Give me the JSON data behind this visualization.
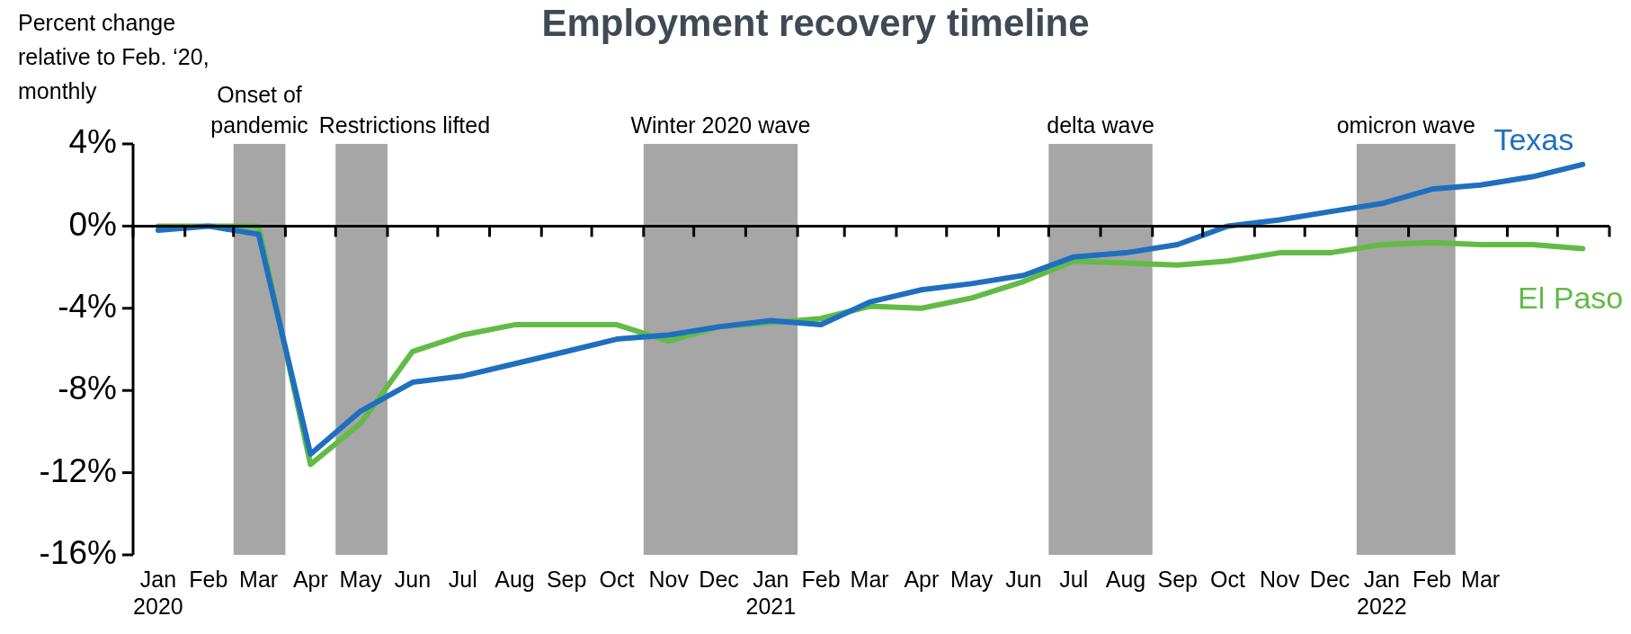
{
  "chart_data": {
    "type": "line",
    "title": "Employment recovery timeline",
    "ylabel": "Percent change\nrelative to Feb. ‘20,\nmonthly",
    "x": [
      "2020-01-16",
      "2020-02-15",
      "2020-03-16",
      "2020-04-16",
      "2020-05-16",
      "2020-06-16",
      "2020-07-16",
      "2020-08-16",
      "2020-09-16",
      "2020-10-16",
      "2020-11-16",
      "2020-12-16",
      "2021-01-16",
      "2021-02-15",
      "2021-03-16",
      "2021-04-16",
      "2021-05-16",
      "2021-06-16",
      "2021-07-16",
      "2021-08-16",
      "2021-09-16",
      "2021-10-16",
      "2021-11-16",
      "2021-12-16",
      "2022-01-16",
      "2022-02-15",
      "2022-03-16",
      "2022-04-16",
      "2022-05-16"
    ],
    "series": [
      {
        "name": "Texas",
        "color": "#1f6fbf",
        "values": [
          -0.2,
          0,
          -0.4,
          -11.1,
          -9.0,
          -7.6,
          -7.3,
          -6.7,
          -6.1,
          -5.5,
          -5.3,
          -4.9,
          -4.6,
          -4.8,
          -3.7,
          -3.1,
          -2.8,
          -2.4,
          -1.5,
          -1.3,
          -0.9,
          0,
          0.3,
          0.7,
          1.1,
          1.8,
          2.0,
          2.4,
          3.0
        ]
      },
      {
        "name": "El Paso",
        "color": "#62bb46",
        "values": [
          0,
          0,
          0,
          -11.6,
          -9.6,
          -6.1,
          -5.3,
          -4.8,
          -4.8,
          -4.8,
          -5.6,
          -4.9,
          -4.7,
          -4.5,
          -3.9,
          -4.0,
          -3.5,
          -2.7,
          -1.7,
          -1.8,
          -1.9,
          -1.7,
          -1.3,
          -1.3,
          -0.9,
          -0.8,
          -0.9,
          -0.9,
          -1.1
        ]
      }
    ],
    "xlim": [
      "2020-01-01",
      "2022-06-01"
    ],
    "xticks": [
      {
        "value": "2020-01-01",
        "label": null
      },
      {
        "value": "2020-02-01",
        "label": null
      },
      {
        "value": "2020-03-01",
        "label": null
      },
      {
        "value": "2020-04-01",
        "label": null
      },
      {
        "value": "2020-05-01",
        "label": null
      },
      {
        "value": "2020-06-01",
        "label": null
      },
      {
        "value": "2020-07-01",
        "label": null
      },
      {
        "value": "2020-08-01",
        "label": null
      },
      {
        "value": "2020-09-01",
        "label": null
      },
      {
        "value": "2020-10-01",
        "label": null
      },
      {
        "value": "2020-11-01",
        "label": null
      },
      {
        "value": "2020-12-01",
        "label": null
      },
      {
        "value": "2021-01-01",
        "label": null
      },
      {
        "value": "2021-02-01",
        "label": null
      },
      {
        "value": "2021-03-01",
        "label": null
      },
      {
        "value": "2021-04-01",
        "label": null
      },
      {
        "value": "2021-05-01",
        "label": null
      },
      {
        "value": "2021-06-01",
        "label": null
      },
      {
        "value": "2021-07-01",
        "label": null
      },
      {
        "value": "2021-08-01",
        "label": null
      },
      {
        "value": "2021-09-01",
        "label": null
      },
      {
        "value": "2021-10-01",
        "label": null
      },
      {
        "value": "2021-11-01",
        "label": null
      },
      {
        "value": "2021-12-01",
        "label": null
      },
      {
        "value": "2022-01-01",
        "label": null
      },
      {
        "value": "2022-02-01",
        "label": null
      },
      {
        "value": "2022-03-01",
        "label": null
      },
      {
        "value": "2022-04-01",
        "label": null
      },
      {
        "value": "2022-05-01",
        "label": null
      },
      {
        "value": "2022-06-01",
        "label": null
      },
      {
        "value": "2020-01-16",
        "label": "Jan\n2020"
      },
      {
        "value": "2020-02-15",
        "label": "Feb"
      },
      {
        "value": "2020-03-16",
        "label": "Mar"
      },
      {
        "value": "2020-04-16",
        "label": "Apr"
      },
      {
        "value": "2020-05-16",
        "label": "May"
      },
      {
        "value": "2020-06-16",
        "label": "Jun"
      },
      {
        "value": "2020-07-16",
        "label": "Jul"
      },
      {
        "value": "2020-08-16",
        "label": "Aug"
      },
      {
        "value": "2020-09-16",
        "label": "Sep"
      },
      {
        "value": "2020-10-16",
        "label": "Oct"
      },
      {
        "value": "2020-11-16",
        "label": "Nov"
      },
      {
        "value": "2020-12-16",
        "label": "Dec"
      },
      {
        "value": "2021-01-16",
        "label": "Jan\n2021"
      },
      {
        "value": "2021-02-15",
        "label": "Feb"
      },
      {
        "value": "2021-03-16",
        "label": "Mar"
      },
      {
        "value": "2021-04-16",
        "label": "Apr"
      },
      {
        "value": "2021-05-16",
        "label": "May"
      },
      {
        "value": "2021-06-16",
        "label": "Jun"
      },
      {
        "value": "2021-07-16",
        "label": "Jul"
      },
      {
        "value": "2021-08-16",
        "label": "Aug"
      },
      {
        "value": "2021-09-16",
        "label": "Sep"
      },
      {
        "value": "2021-10-16",
        "label": "Oct"
      },
      {
        "value": "2021-11-16",
        "label": "Nov"
      },
      {
        "value": "2021-12-16",
        "label": "Dec"
      },
      {
        "value": "2022-01-16",
        "label": "Jan\n2022"
      },
      {
        "value": "2022-02-15",
        "label": "Feb"
      },
      {
        "value": "2022-03-16",
        "label": "Mar"
      }
    ],
    "ref_lines": [
      {
        "axis": "y",
        "value": 0,
        "color": "#000000"
      }
    ],
    "ylim": [
      -16,
      4
    ],
    "yticks": [
      {
        "value": -16,
        "label": "-16%"
      },
      {
        "value": -12,
        "label": "-12%"
      },
      {
        "value": -8,
        "label": "-8%"
      },
      {
        "value": -4,
        "label": "-4%"
      },
      {
        "value": 0,
        "label": "0%"
      },
      {
        "value": 4,
        "label": "4%"
      }
    ],
    "bands": [
      {
        "axis": "x",
        "from": "2020-03-01",
        "to": "2020-04-01",
        "label": "Onset of\npandemic",
        "color": "#a6a6a6"
      },
      {
        "axis": "x",
        "from": "2020-05-01",
        "to": "2020-06-01",
        "label": "Restrictions lifted",
        "color": "#a6a6a6"
      },
      {
        "axis": "x",
        "from": "2020-11-01",
        "to": "2021-02-01",
        "label": "Winter 2020 wave",
        "color": "#a6a6a6"
      },
      {
        "axis": "x",
        "from": "2021-07-01",
        "to": "2021-09-01",
        "label": "delta wave",
        "color": "#a6a6a6"
      },
      {
        "axis": "x",
        "from": "2022-01-01",
        "to": "2022-03-01",
        "label": "omicron wave",
        "color": "#a6a6a6"
      }
    ],
    "grid": false,
    "legend": false,
    "marker": "none",
    "line_style": "solid"
  }
}
